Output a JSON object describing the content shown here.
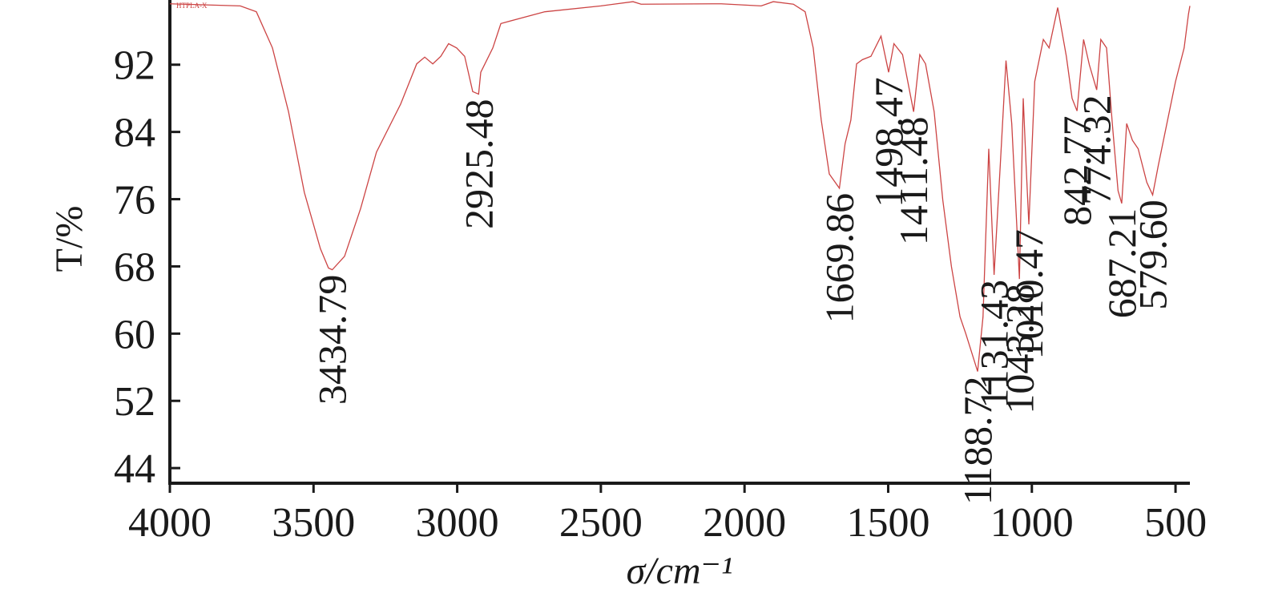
{
  "chart_data": {
    "type": "line",
    "x_label": "σ/cm⁻¹",
    "y_label": "T/%",
    "xlim": [
      4000,
      450
    ],
    "ylim": [
      42.2,
      99.7
    ],
    "xticks": [
      4000,
      3500,
      3000,
      2500,
      2000,
      1500,
      1000,
      500
    ],
    "yticks": [
      44,
      52,
      60,
      68,
      76,
      84,
      92
    ],
    "series": [
      {
        "name": "HTPLA-X",
        "color": "#cc4444",
        "x": [
          4000,
          3755,
          3699,
          3643,
          3587,
          3532,
          3476,
          3448,
          3434.79,
          3392,
          3336,
          3281,
          3197,
          3141,
          3113,
          3085,
          3057,
          3030,
          3002,
          2974,
          2946,
          2925.48,
          2918,
          2876,
          2848,
          2695,
          2500,
          2388,
          2360,
          2081,
          1942,
          1900,
          1830,
          1789,
          1761,
          1733,
          1705,
          1669.86,
          1650,
          1630,
          1610,
          1590,
          1560,
          1525,
          1498.47,
          1480,
          1450,
          1411.48,
          1390,
          1370,
          1340,
          1310,
          1280,
          1250,
          1230,
          1188.72,
          1170,
          1150,
          1131.43,
          1110,
          1090,
          1070,
          1043.28,
          1030,
          1020,
          1010.47,
          990,
          960,
          940,
          910,
          880,
          860,
          842.77,
          820,
          800,
          774.32,
          760,
          740,
          720,
          700,
          687.21,
          670,
          650,
          630,
          600,
          579.6,
          560,
          530,
          500,
          470,
          455,
          450
        ],
        "y": [
          99.25,
          99,
          98.3,
          94,
          86.4,
          76.8,
          70.1,
          67.8,
          67.6,
          69.2,
          74.9,
          81.6,
          87.3,
          92.1,
          92.9,
          92.1,
          93,
          94.5,
          94,
          93,
          88.8,
          88.5,
          91.1,
          94,
          96.9,
          98.3,
          99,
          99.5,
          99.2,
          99.25,
          99,
          99.5,
          99.2,
          98.3,
          94,
          85.4,
          79,
          77.3,
          82.6,
          85.4,
          92.1,
          92.6,
          93,
          95.4,
          91.1,
          94.5,
          93.2,
          86.4,
          93.2,
          92.1,
          86.4,
          75.9,
          68,
          62,
          60,
          55.5,
          62,
          82,
          67,
          80,
          92.5,
          85,
          66.5,
          88,
          80,
          73,
          90,
          95,
          94,
          98.8,
          93,
          88,
          86.5,
          95,
          92,
          89,
          95,
          94,
          85,
          77,
          75.5,
          85,
          83,
          82,
          78,
          76.5,
          80,
          85,
          90,
          94,
          98,
          99
        ]
      }
    ],
    "annotations": [
      {
        "text": "3434.79",
        "x": 3434.79,
        "y": 67.6
      },
      {
        "text": "2925.48",
        "x": 2925.48,
        "y": 88.5
      },
      {
        "text": "1669.86",
        "x": 1669.86,
        "y": 77.3
      },
      {
        "text": "1498.47",
        "x": 1498.47,
        "y": 91.1
      },
      {
        "text": "1411.48",
        "x": 1411.48,
        "y": 86.4
      },
      {
        "text": "1188.72",
        "x": 1188.72,
        "y": 55.5
      },
      {
        "text": "1131.43",
        "x": 1131.43,
        "y": 67
      },
      {
        "text": "1043.28",
        "x": 1043.28,
        "y": 66.5
      },
      {
        "text": "1010.47",
        "x": 1010.47,
        "y": 73
      },
      {
        "text": "842.77",
        "x": 842.77,
        "y": 86.5
      },
      {
        "text": "774.32",
        "x": 774.32,
        "y": 89
      },
      {
        "text": "687.21",
        "x": 687.21,
        "y": 75.5
      },
      {
        "text": "579.60",
        "x": 579.6,
        "y": 76.5
      }
    ]
  }
}
